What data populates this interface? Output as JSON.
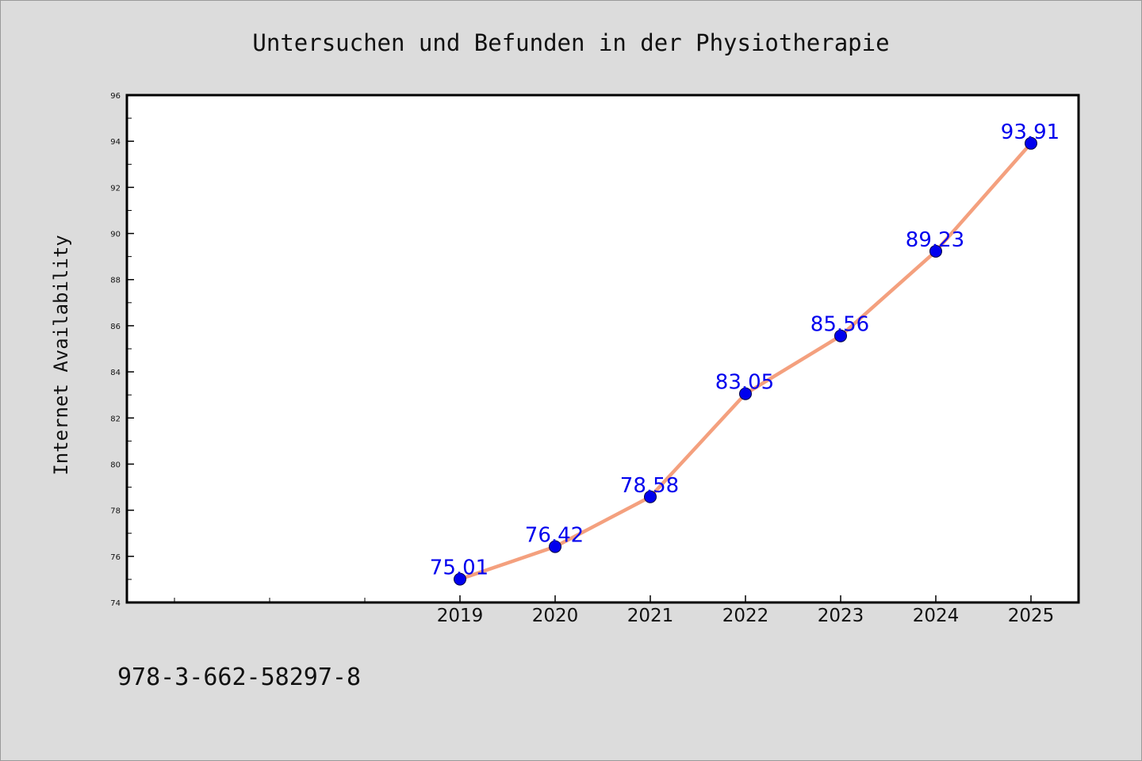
{
  "chart_data": {
    "type": "line",
    "title": "Untersuchen und Befunden in der Physiotherapie",
    "ylabel": "Internet Availability",
    "xlabel": "",
    "categories": [
      "2019",
      "2020",
      "2021",
      "2022",
      "2023",
      "2024",
      "2025"
    ],
    "series": [
      {
        "values": [
          75.01,
          76.42,
          78.58,
          83.05,
          85.56,
          89.23,
          93.91
        ],
        "labels": [
          "75.01",
          "76.42",
          "78.58",
          "83.05",
          "85.56",
          "89.23",
          "93.91"
        ],
        "line_color": "#f4a07e",
        "marker_color": "#0000ee",
        "label_color": "#0000ee"
      }
    ],
    "ylim": [
      74,
      96
    ],
    "yticks": [
      "74",
      "76",
      "78",
      "80",
      "82",
      "84",
      "86",
      "88",
      "90",
      "92",
      "94",
      "96"
    ],
    "grid": false,
    "legend": "none"
  },
  "footer": {
    "isbn": "978-3-662-58297-8"
  }
}
